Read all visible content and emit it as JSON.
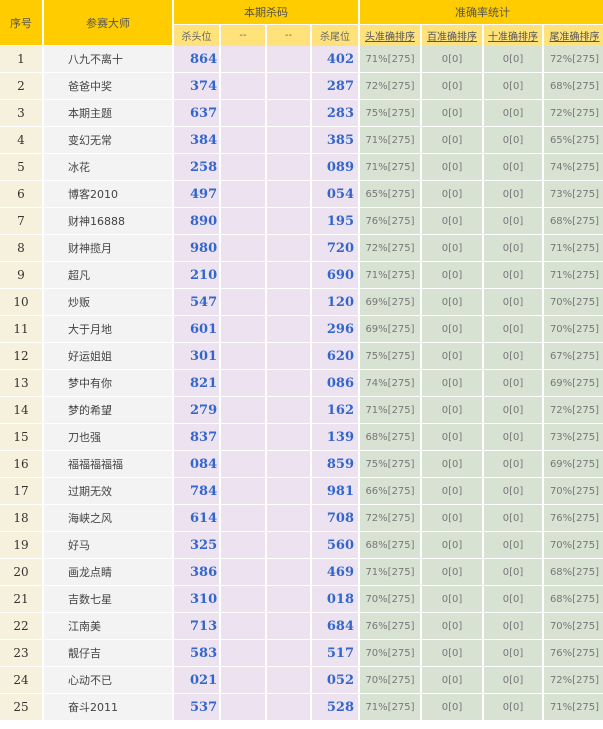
{
  "header": {
    "seq": "序号",
    "master": "参赛大师",
    "current": "本期杀码",
    "stats": "准确率统计",
    "sub": [
      "杀头位",
      "--",
      "--",
      "杀尾位",
      "头准确排序",
      "百准确排序",
      "十准确排序",
      "尾准确排序"
    ]
  },
  "rows": [
    {
      "seq": "1",
      "name": "八九不离十",
      "head": "864",
      "tail": "402",
      "s": [
        "71%[275]",
        "0[0]",
        "0[0]",
        "72%[275]"
      ]
    },
    {
      "seq": "2",
      "name": "爸爸中奖",
      "head": "374",
      "tail": "287",
      "s": [
        "72%[275]",
        "0[0]",
        "0[0]",
        "68%[275]"
      ]
    },
    {
      "seq": "3",
      "name": "本期主题",
      "head": "637",
      "tail": "283",
      "s": [
        "75%[275]",
        "0[0]",
        "0[0]",
        "72%[275]"
      ]
    },
    {
      "seq": "4",
      "name": "变幻无常",
      "head": "384",
      "tail": "385",
      "s": [
        "71%[275]",
        "0[0]",
        "0[0]",
        "65%[275]"
      ]
    },
    {
      "seq": "5",
      "name": "冰花",
      "head": "258",
      "tail": "089",
      "s": [
        "71%[275]",
        "0[0]",
        "0[0]",
        "74%[275]"
      ]
    },
    {
      "seq": "6",
      "name": "博客2010",
      "head": "497",
      "tail": "054",
      "s": [
        "65%[275]",
        "0[0]",
        "0[0]",
        "73%[275]"
      ]
    },
    {
      "seq": "7",
      "name": "财神16888",
      "head": "890",
      "tail": "195",
      "s": [
        "76%[275]",
        "0[0]",
        "0[0]",
        "68%[275]"
      ]
    },
    {
      "seq": "8",
      "name": "财神揽月",
      "head": "980",
      "tail": "720",
      "s": [
        "72%[275]",
        "0[0]",
        "0[0]",
        "71%[275]"
      ]
    },
    {
      "seq": "9",
      "name": "超凡",
      "head": "210",
      "tail": "690",
      "s": [
        "71%[275]",
        "0[0]",
        "0[0]",
        "71%[275]"
      ]
    },
    {
      "seq": "10",
      "name": "炒贩",
      "head": "547",
      "tail": "120",
      "s": [
        "69%[275]",
        "0[0]",
        "0[0]",
        "70%[275]"
      ]
    },
    {
      "seq": "11",
      "name": "大于月地",
      "head": "601",
      "tail": "296",
      "s": [
        "69%[275]",
        "0[0]",
        "0[0]",
        "70%[275]"
      ]
    },
    {
      "seq": "12",
      "name": "好运姐姐",
      "head": "301",
      "tail": "620",
      "s": [
        "75%[275]",
        "0[0]",
        "0[0]",
        "67%[275]"
      ]
    },
    {
      "seq": "13",
      "name": "梦中有你",
      "head": "821",
      "tail": "086",
      "s": [
        "74%[275]",
        "0[0]",
        "0[0]",
        "69%[275]"
      ]
    },
    {
      "seq": "14",
      "name": "梦的希望",
      "head": "279",
      "tail": "162",
      "s": [
        "71%[275]",
        "0[0]",
        "0[0]",
        "72%[275]"
      ]
    },
    {
      "seq": "15",
      "name": "刀也强",
      "head": "837",
      "tail": "139",
      "s": [
        "68%[275]",
        "0[0]",
        "0[0]",
        "73%[275]"
      ]
    },
    {
      "seq": "16",
      "name": "福福福福福",
      "head": "084",
      "tail": "859",
      "s": [
        "75%[275]",
        "0[0]",
        "0[0]",
        "69%[275]"
      ]
    },
    {
      "seq": "17",
      "name": "过期无效",
      "head": "784",
      "tail": "981",
      "s": [
        "66%[275]",
        "0[0]",
        "0[0]",
        "70%[275]"
      ]
    },
    {
      "seq": "18",
      "name": "海峡之风",
      "head": "614",
      "tail": "708",
      "s": [
        "72%[275]",
        "0[0]",
        "0[0]",
        "76%[275]"
      ]
    },
    {
      "seq": "19",
      "name": "好马",
      "head": "325",
      "tail": "560",
      "s": [
        "68%[275]",
        "0[0]",
        "0[0]",
        "70%[275]"
      ]
    },
    {
      "seq": "20",
      "name": "画龙点睛",
      "head": "386",
      "tail": "469",
      "s": [
        "71%[275]",
        "0[0]",
        "0[0]",
        "68%[275]"
      ]
    },
    {
      "seq": "21",
      "name": "吉数七星",
      "head": "310",
      "tail": "018",
      "s": [
        "70%[275]",
        "0[0]",
        "0[0]",
        "68%[275]"
      ]
    },
    {
      "seq": "22",
      "name": "江南美",
      "head": "713",
      "tail": "684",
      "s": [
        "76%[275]",
        "0[0]",
        "0[0]",
        "70%[275]"
      ]
    },
    {
      "seq": "23",
      "name": "靓仔吉",
      "head": "583",
      "tail": "517",
      "s": [
        "70%[275]",
        "0[0]",
        "0[0]",
        "76%[275]"
      ]
    },
    {
      "seq": "24",
      "name": "心动不已",
      "head": "021",
      "tail": "052",
      "s": [
        "70%[275]",
        "0[0]",
        "0[0]",
        "72%[275]"
      ]
    },
    {
      "seq": "25",
      "name": "奋斗2011",
      "head": "537",
      "tail": "528",
      "s": [
        "71%[275]",
        "0[0]",
        "0[0]",
        "71%[275]"
      ]
    }
  ]
}
